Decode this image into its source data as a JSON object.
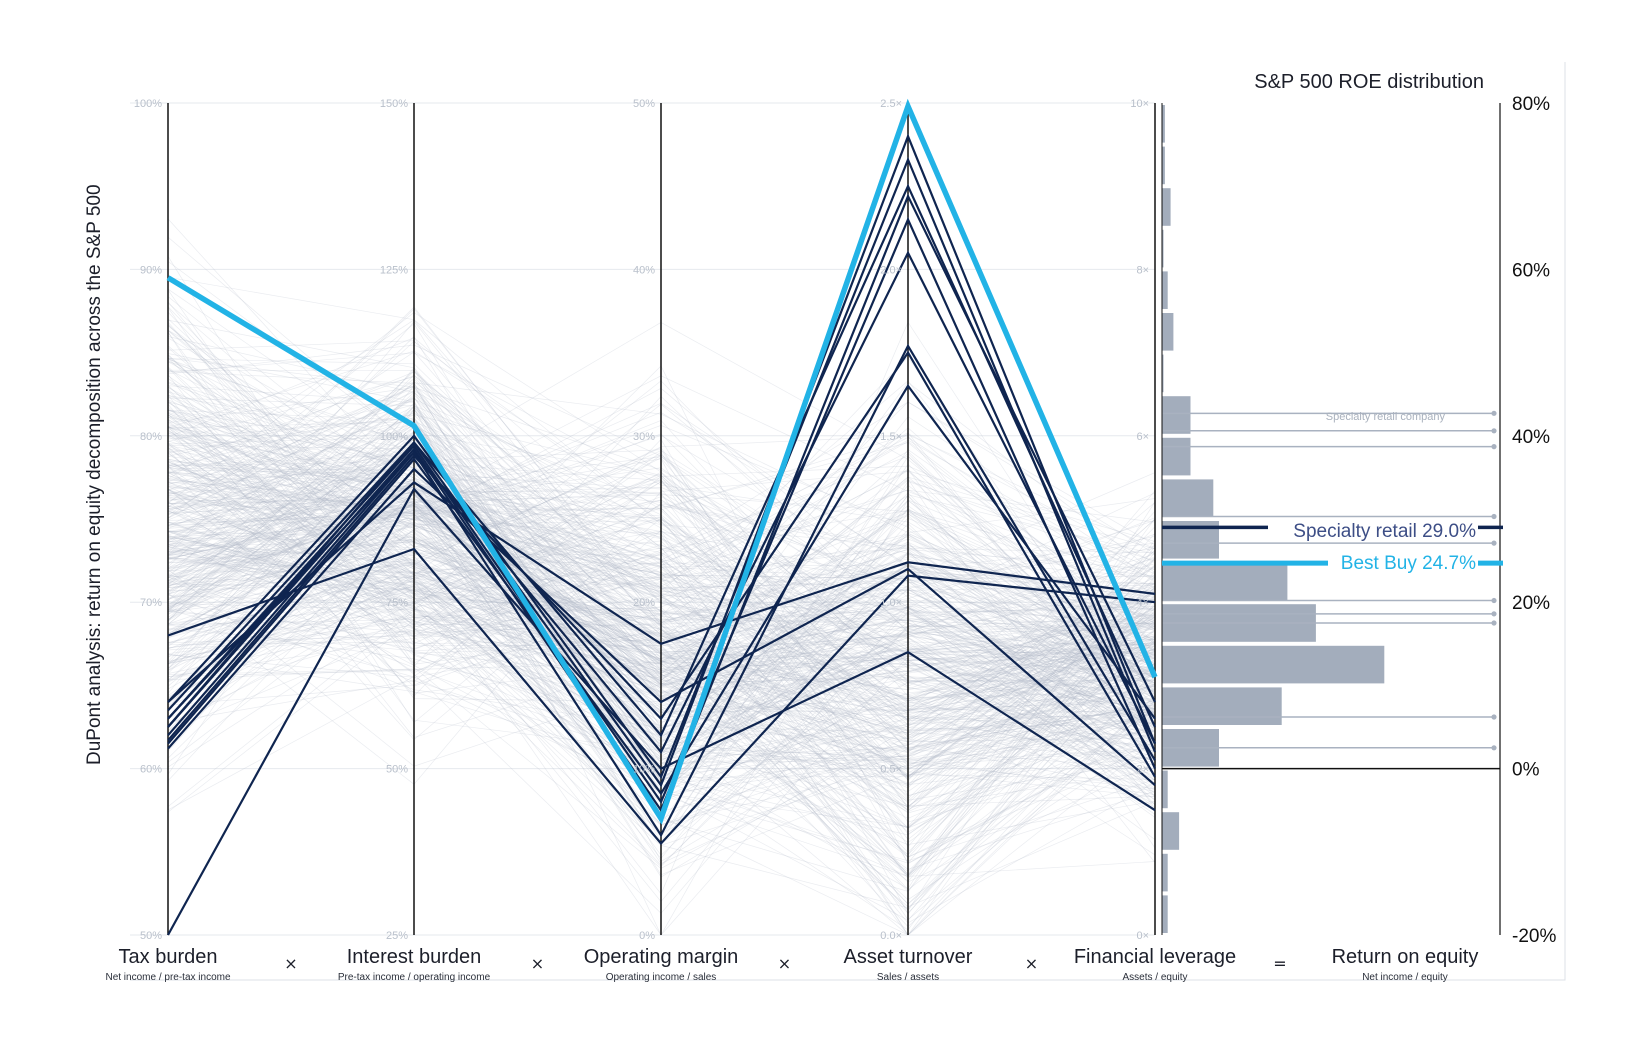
{
  "chart_data": {
    "type": "parallel-coordinates",
    "y_axis_label": "DuPont analysis: return on equity decomposition across the S&P 500",
    "histogram_title": "S&P 500 ROE distribution",
    "axes": [
      {
        "key": "tax",
        "name": "Tax burden",
        "formula": "Net income / pre-tax income",
        "min": 0.5,
        "max": 1.0,
        "ticks": [
          "50%",
          "60%",
          "70%",
          "80%",
          "90%",
          "100%"
        ],
        "operator_after": "×"
      },
      {
        "key": "interest",
        "name": "Interest burden",
        "formula": "Pre-tax income / operating income",
        "min": 0.25,
        "max": 1.5,
        "ticks": [
          "25%",
          "50%",
          "75%",
          "100%",
          "125%",
          "150%"
        ],
        "operator_after": "×"
      },
      {
        "key": "margin",
        "name": "Operating margin",
        "formula": "Operating income / sales",
        "min": 0.0,
        "max": 0.5,
        "ticks": [
          "0%",
          "10%",
          "20%",
          "30%",
          "40%",
          "50%"
        ],
        "operator_after": "×"
      },
      {
        "key": "turnover",
        "name": "Asset turnover",
        "formula": "Sales / assets",
        "min": 0.0,
        "max": 2.5,
        "ticks": [
          "0.0×",
          "0.5×",
          "1.0×",
          "1.5×",
          "2.0×",
          "2.5×"
        ],
        "operator_after": "×"
      },
      {
        "key": "leverage",
        "name": "Financial leverage",
        "formula": "Assets / equity",
        "min": 0,
        "max": 10,
        "ticks": [
          "0×",
          "2×",
          "4×",
          "6×",
          "8×",
          "10×"
        ],
        "operator_after": "="
      },
      {
        "key": "roe",
        "name": "Return on equity",
        "formula": "Net income / equity",
        "min": -0.2,
        "max": 0.8,
        "ticks": [
          "-20%",
          "0%",
          "20%",
          "40%",
          "60%",
          "80%"
        ]
      }
    ],
    "roe_histogram": {
      "bin_width": 0.05,
      "bins": [
        {
          "from": -0.2,
          "to": -0.15,
          "count": 1
        },
        {
          "from": -0.15,
          "to": -0.1,
          "count": 1
        },
        {
          "from": -0.1,
          "to": -0.05,
          "count": 3
        },
        {
          "from": -0.05,
          "to": 0.0,
          "count": 1
        },
        {
          "from": 0.0,
          "to": 0.05,
          "count": 10
        },
        {
          "from": 0.05,
          "to": 0.1,
          "count": 21
        },
        {
          "from": 0.1,
          "to": 0.15,
          "count": 39
        },
        {
          "from": 0.15,
          "to": 0.2,
          "count": 27
        },
        {
          "from": 0.2,
          "to": 0.25,
          "count": 22
        },
        {
          "from": 0.25,
          "to": 0.3,
          "count": 10
        },
        {
          "from": 0.3,
          "to": 0.35,
          "count": 9
        },
        {
          "from": 0.35,
          "to": 0.4,
          "count": 5
        },
        {
          "from": 0.4,
          "to": 0.45,
          "count": 5
        },
        {
          "from": 0.45,
          "to": 0.5,
          "count": 0.2
        },
        {
          "from": 0.5,
          "to": 0.55,
          "count": 2
        },
        {
          "from": 0.55,
          "to": 0.6,
          "count": 1
        },
        {
          "from": 0.6,
          "to": 0.65,
          "count": 0.2
        },
        {
          "from": 0.65,
          "to": 0.7,
          "count": 1.5
        },
        {
          "from": 0.7,
          "to": 0.75,
          "count": 0.5
        },
        {
          "from": 0.75,
          "to": 0.8,
          "count": 0.5
        }
      ]
    },
    "peer_roe_markers": [
      0.427,
      0.406,
      0.387,
      0.303,
      0.271,
      0.202,
      0.186,
      0.175,
      0.062,
      0.025
    ],
    "peer_label": "Specialty retail company",
    "highlight_avg": {
      "label": "Specialty retail 29.0%",
      "roe": 0.29,
      "color": "#0f2550"
    },
    "highlight_company": {
      "label": "Best Buy 24.7%",
      "roe": 0.247,
      "color": "#22b3e6",
      "values": {
        "tax": 0.895,
        "interest": 1.015,
        "margin": 0.07,
        "turnover": 2.49,
        "leverage": 3.1
      }
    },
    "peer_companies": [
      {
        "tax": 0.64,
        "interest": 1.0,
        "margin": 0.095,
        "turnover": 2.33,
        "leverage": 2.2
      },
      {
        "tax": 0.635,
        "interest": 0.99,
        "margin": 0.12,
        "turnover": 2.25,
        "leverage": 2.5
      },
      {
        "tax": 0.63,
        "interest": 0.985,
        "margin": 0.08,
        "turnover": 2.15,
        "leverage": 2.0
      },
      {
        "tax": 0.625,
        "interest": 0.98,
        "margin": 0.075,
        "turnover": 2.22,
        "leverage": 2.8
      },
      {
        "tax": 0.62,
        "interest": 0.975,
        "margin": 0.11,
        "turnover": 2.05,
        "leverage": 2.3
      },
      {
        "tax": 0.617,
        "interest": 0.97,
        "margin": 0.13,
        "turnover": 1.75,
        "leverage": 1.9
      },
      {
        "tax": 0.615,
        "interest": 0.965,
        "margin": 0.085,
        "turnover": 1.65,
        "leverage": 2.6
      },
      {
        "tax": 0.68,
        "interest": 0.83,
        "margin": 0.055,
        "turnover": 1.08,
        "leverage": 4.0
      },
      {
        "tax": 0.612,
        "interest": 0.95,
        "margin": 0.14,
        "turnover": 1.1,
        "leverage": 1.8
      },
      {
        "tax": 0.64,
        "interest": 0.93,
        "margin": 0.175,
        "turnover": 1.12,
        "leverage": 4.1
      },
      {
        "tax": 0.5,
        "interest": 0.92,
        "margin": 0.1,
        "turnover": 0.85,
        "leverage": 1.5
      },
      {
        "tax": 0.625,
        "interest": 0.99,
        "margin": 0.09,
        "turnover": 2.4,
        "leverage": 2.3
      },
      {
        "tax": 0.63,
        "interest": 0.975,
        "margin": 0.06,
        "turnover": 1.77,
        "leverage": 2.1
      }
    ],
    "background_companies_count": 480,
    "grid": true
  }
}
